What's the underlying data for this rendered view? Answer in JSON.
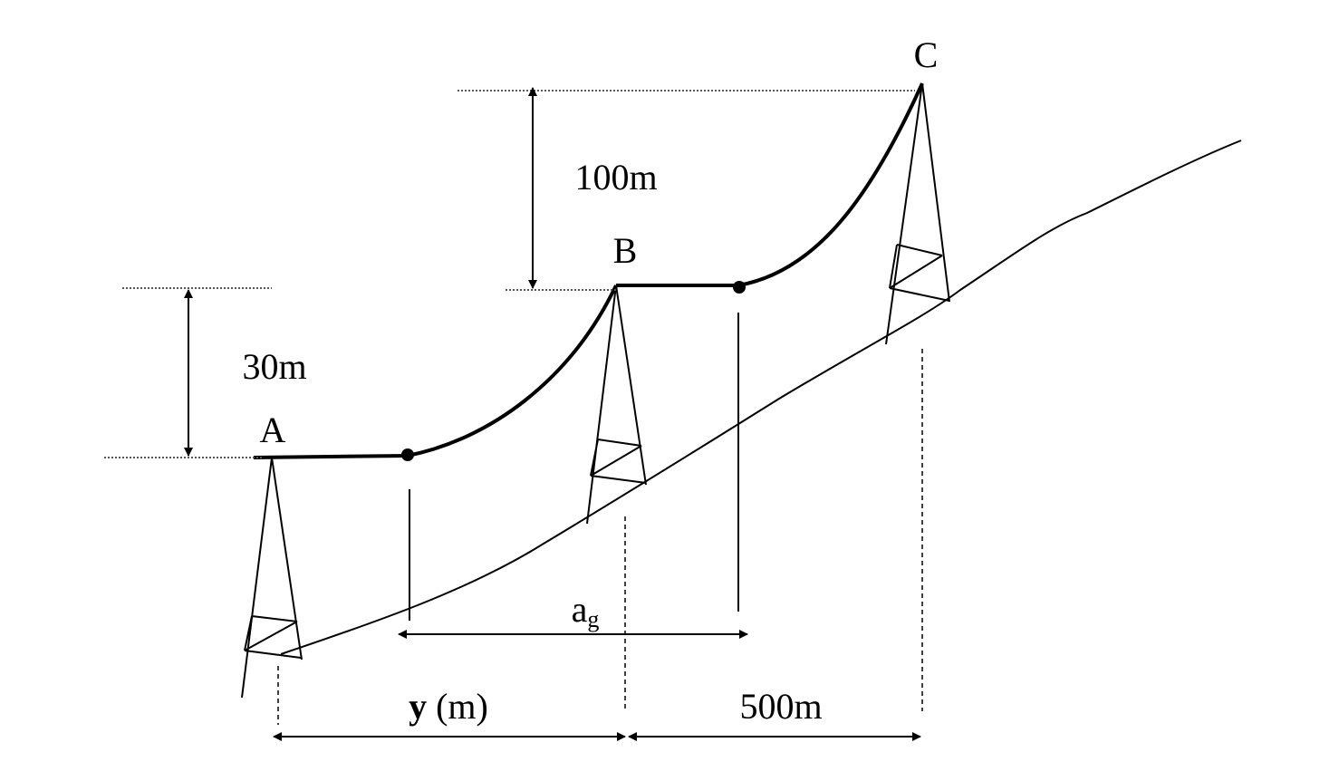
{
  "towers": [
    {
      "label": "A"
    },
    {
      "label": "B"
    },
    {
      "label": "C"
    }
  ],
  "dimensions": {
    "height_ab": "30m",
    "height_bc": "100m",
    "span_ag": {
      "main": "a",
      "sub": "g"
    },
    "distance_ab": {
      "symbol": "y",
      "unit": "(m)"
    },
    "distance_bc": "500m"
  }
}
